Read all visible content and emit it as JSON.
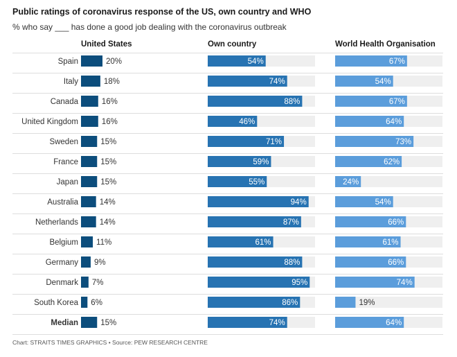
{
  "header": {
    "title": "Public ratings of coronavirus response of the US, own country and WHO",
    "subtitle": "% who say ___ has done a good job dealing with the coronavirus outbreak"
  },
  "columns": [
    "United States",
    "Own country",
    "World Health Organisation"
  ],
  "footer": "Chart: STRAITS TIMES GRAPHICS • Source: PEW RESEARCH CENTRE",
  "colors": {
    "us": "#0c4d7c",
    "own": "#2773b2",
    "who": "#5b9ddb",
    "track": "#efefef",
    "divider": "#dddddd",
    "label_dark": "#333333",
    "label_light": "#ffffff"
  },
  "chart_data": {
    "type": "bar",
    "orientation": "horizontal",
    "unit": "%",
    "xlim": [
      0,
      100
    ],
    "categories": [
      "Spain",
      "Italy",
      "Canada",
      "United Kingdom",
      "Sweden",
      "France",
      "Japan",
      "Australia",
      "Netherlands",
      "Belgium",
      "Germany",
      "Denmark",
      "South Korea",
      "Median"
    ],
    "bold_categories": [
      "Median"
    ],
    "series": [
      {
        "name": "United States",
        "values": [
          20,
          18,
          16,
          16,
          15,
          15,
          15,
          14,
          14,
          11,
          9,
          7,
          6,
          15
        ]
      },
      {
        "name": "Own country",
        "values": [
          54,
          74,
          88,
          46,
          71,
          59,
          55,
          94,
          87,
          61,
          88,
          95,
          86,
          74
        ]
      },
      {
        "name": "World Health Organisation",
        "values": [
          67,
          54,
          67,
          64,
          73,
          62,
          24,
          54,
          66,
          61,
          66,
          74,
          19,
          64
        ]
      }
    ]
  }
}
